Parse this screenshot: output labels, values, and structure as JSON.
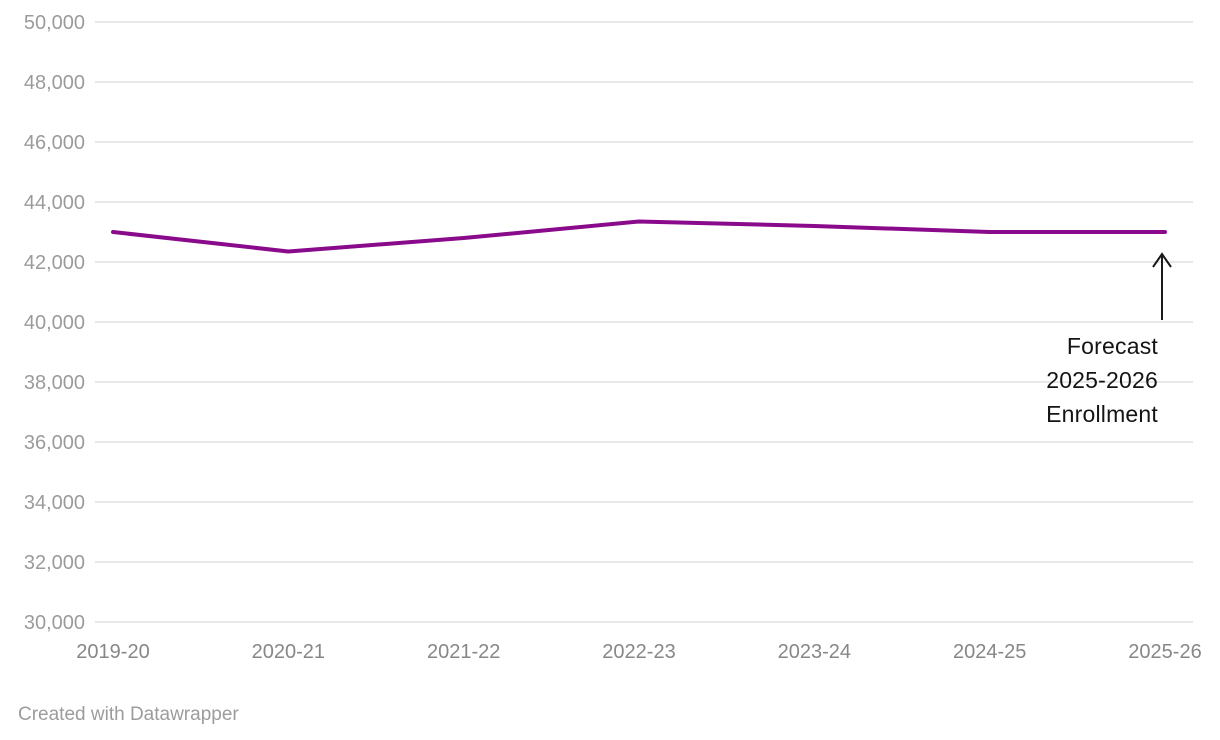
{
  "chart_data": {
    "type": "line",
    "title": "",
    "xlabel": "",
    "ylabel": "",
    "categories": [
      "2019-20",
      "2020-21",
      "2021-22",
      "2022-23",
      "2023-24",
      "2024-25",
      "2025-26"
    ],
    "series": [
      {
        "name": "Enrollment",
        "color": "#890a8a",
        "values": [
          43000,
          42350,
          42800,
          43350,
          43200,
          43000,
          43000
        ]
      }
    ],
    "ylim": [
      30000,
      50000
    ],
    "ytick_step": 2000,
    "ytick_labels": [
      "50,000",
      "48,000",
      "46,000",
      "44,000",
      "42,000",
      "40,000",
      "38,000",
      "36,000",
      "34,000",
      "32,000",
      "30,000"
    ],
    "grid": true,
    "legend": false,
    "annotation": {
      "lines": [
        "Forecast",
        "2025-2026",
        "Enrollment"
      ],
      "arrow": "up",
      "target_category": "2025-26"
    }
  },
  "colors": {
    "line": "#890a8a",
    "grid": "#e8e8e8",
    "y_tick_text": "#9b9b9b",
    "x_tick_text": "#878787",
    "annotation_text": "#141414",
    "arrow": "#1a1a1a",
    "footer_text": "#9c9c9c",
    "background": "#ffffff"
  },
  "footer": {
    "text": "Created with Datawrapper"
  }
}
